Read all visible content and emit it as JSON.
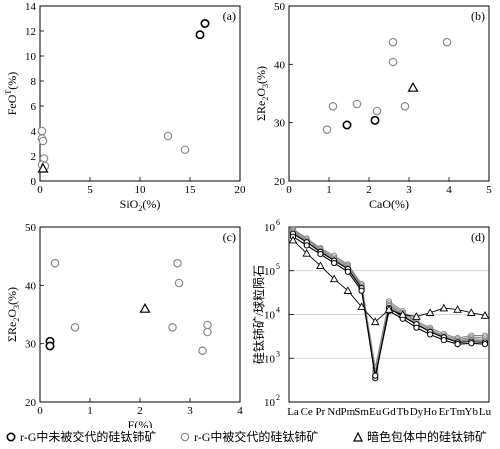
{
  "legend": {
    "series1": "r-G中未被交代的硅钛铈矿",
    "series2": "r-G中被交代的硅钛铈矿",
    "series3": "暗色包体中的硅钛铈矿"
  },
  "styles": {
    "series1": {
      "marker": "circle",
      "stroke": "#000000",
      "width": 1.6
    },
    "series2": {
      "marker": "circle",
      "stroke": "#8a8a8a",
      "width": 1.2
    },
    "series3": {
      "marker": "triangle",
      "stroke": "#000000",
      "width": 1.2
    }
  },
  "chart_data": [
    {
      "id": "a",
      "type": "scatter",
      "panel_label": "(a)",
      "xlabel": "SiO2(%)",
      "ylabel": "FeOT(%)",
      "xlim": [
        0,
        20
      ],
      "ylim": [
        0,
        14
      ],
      "xticks": [
        "0",
        "5",
        "10",
        "15",
        "20"
      ],
      "yticks": [
        "0",
        "2",
        "4",
        "6",
        "8",
        "10",
        "12",
        "14"
      ],
      "series": [
        {
          "key": "series1",
          "points": [
            [
              16.0,
              11.7
            ],
            [
              16.5,
              12.6
            ]
          ]
        },
        {
          "key": "series2",
          "points": [
            [
              0.2,
              4.0
            ],
            [
              0.2,
              3.4
            ],
            [
              0.3,
              3.2
            ],
            [
              0.4,
              1.8
            ],
            [
              0.2,
              1.3
            ],
            [
              0.5,
              1.2
            ],
            [
              12.8,
              3.6
            ],
            [
              14.5,
              2.5
            ]
          ]
        },
        {
          "key": "series3",
          "points": [
            [
              0.3,
              1.0
            ]
          ]
        }
      ]
    },
    {
      "id": "b",
      "type": "scatter",
      "panel_label": "(b)",
      "xlabel": "CaO(%)",
      "ylabel": "ΣRe2O3(%)",
      "xlim": [
        0,
        5
      ],
      "ylim": [
        20,
        50
      ],
      "xticks": [
        "0",
        "1",
        "2",
        "3",
        "4",
        "5"
      ],
      "yticks": [
        "20",
        "30",
        "40",
        "50"
      ],
      "series": [
        {
          "key": "series1",
          "points": [
            [
              1.45,
              29.6
            ],
            [
              2.15,
              30.4
            ]
          ]
        },
        {
          "key": "series2",
          "points": [
            [
              0.95,
              28.8
            ],
            [
              1.1,
              32.8
            ],
            [
              1.7,
              33.2
            ],
            [
              2.2,
              32.0
            ],
            [
              2.6,
              43.8
            ],
            [
              2.6,
              40.4
            ],
            [
              2.9,
              32.8
            ],
            [
              3.95,
              43.8
            ]
          ]
        },
        {
          "key": "series3",
          "points": [
            [
              3.1,
              36.0
            ]
          ]
        }
      ]
    },
    {
      "id": "c",
      "type": "scatter",
      "panel_label": "(c)",
      "xlabel": "F(%)",
      "ylabel": "ΣRe2O3(%)",
      "xlim": [
        0,
        4
      ],
      "ylim": [
        20,
        50
      ],
      "xticks": [
        "0",
        "1",
        "2",
        "3",
        "4"
      ],
      "yticks": [
        "20",
        "30",
        "40",
        "50"
      ],
      "series": [
        {
          "key": "series1",
          "points": [
            [
              0.2,
              30.4
            ],
            [
              0.2,
              29.6
            ]
          ]
        },
        {
          "key": "series2",
          "points": [
            [
              0.3,
              43.8
            ],
            [
              0.7,
              32.8
            ],
            [
              2.65,
              32.8
            ],
            [
              2.75,
              43.8
            ],
            [
              2.78,
              40.4
            ],
            [
              3.25,
              28.8
            ],
            [
              3.35,
              33.2
            ],
            [
              3.35,
              32.0
            ]
          ]
        },
        {
          "key": "series3",
          "points": [
            [
              2.1,
              36.0
            ]
          ]
        }
      ]
    },
    {
      "id": "d",
      "type": "line",
      "panel_label": "(d)",
      "xlabel": "",
      "ylabel": "硅钛铈矿/球粒陨石",
      "log_y": true,
      "ylim": [
        100,
        1000000
      ],
      "yticks": [
        {
          "base": "10",
          "exp": "2"
        },
        {
          "base": "10",
          "exp": "3"
        },
        {
          "base": "10",
          "exp": "4"
        },
        {
          "base": "10",
          "exp": "5"
        },
        {
          "base": "10",
          "exp": "6"
        }
      ],
      "categories": [
        "La",
        "Ce",
        "Pr",
        "Nd",
        "Pm",
        "Sm",
        "Eu",
        "Gd",
        "Tb",
        "Dy",
        "Ho",
        "Er",
        "Tm",
        "Yb",
        "Lu"
      ],
      "grid": "horizontal",
      "series": [
        {
          "key": "series1",
          "values": [
            700000,
            450000,
            270000,
            170000,
            110000,
            40000,
            350,
            14000,
            9000,
            6000,
            4000,
            3000,
            2300,
            2400,
            2300
          ]
        },
        {
          "key": "series1",
          "values": [
            600000,
            380000,
            240000,
            150000,
            95000,
            35000,
            400,
            12000,
            8000,
            5000,
            3500,
            2600,
            2100,
            2200,
            2100
          ]
        },
        {
          "key": "series2",
          "values": [
            900000,
            550000,
            330000,
            220000,
            140000,
            50000,
            600,
            20000,
            12000,
            7000,
            5000,
            3600,
            2900,
            3300,
            3300
          ]
        },
        {
          "key": "series2",
          "values": [
            850000,
            520000,
            310000,
            200000,
            130000,
            46000,
            500,
            18000,
            11000,
            6500,
            4600,
            3300,
            2700,
            3000,
            3000
          ]
        },
        {
          "key": "series2",
          "values": [
            800000,
            480000,
            290000,
            185000,
            120000,
            43000,
            450,
            16500,
            10000,
            6000,
            4300,
            3100,
            2500,
            2800,
            2700
          ]
        },
        {
          "key": "series2",
          "values": [
            750000,
            460000,
            280000,
            175000,
            115000,
            41000,
            400,
            15500,
            9500,
            5700,
            4100,
            2900,
            2400,
            2600,
            2500
          ]
        },
        {
          "key": "series3",
          "values": [
            500000,
            250000,
            130000,
            65000,
            35000,
            15000,
            6800,
            13000,
            10000,
            9000,
            11000,
            14000,
            13000,
            11000,
            9500
          ]
        }
      ]
    }
  ]
}
